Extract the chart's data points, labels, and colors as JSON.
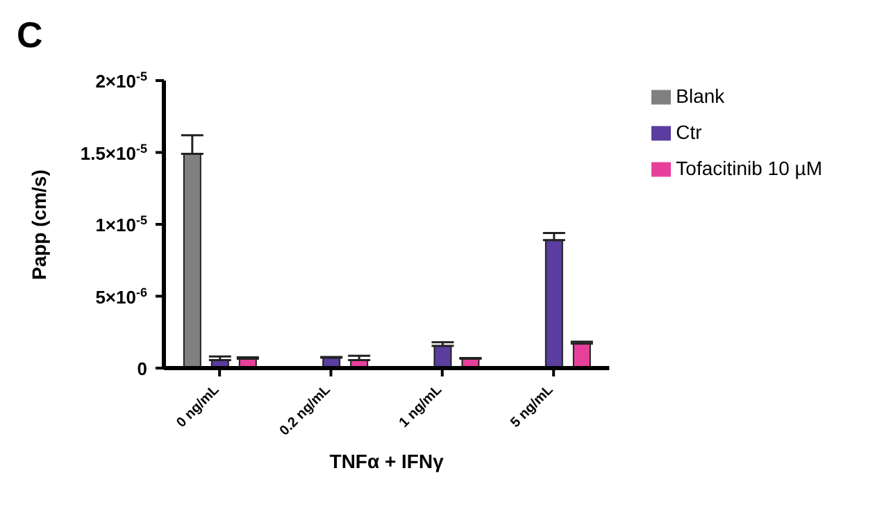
{
  "chart_data": {
    "type": "bar",
    "title": "C",
    "xlabel": "TNFα + IFNγ",
    "ylabel": "Papp (cm/s)",
    "categories": [
      "0 ng/mL",
      "0.2 ng/mL",
      "1 ng/mL",
      "5 ng/mL"
    ],
    "series": [
      {
        "name": "Blank",
        "color": "#808080",
        "values": [
          1.49e-05,
          null,
          null,
          null
        ],
        "errors": [
          1.3e-06,
          null,
          null,
          null
        ]
      },
      {
        "name": "Ctr",
        "color": "#5a3d9e",
        "values": [
          5.5e-07,
          7.2e-07,
          1.55e-06,
          8.9e-06
        ],
        "errors": [
          2.6e-07,
          5e-08,
          2.5e-07,
          5e-07
        ]
      },
      {
        "name": "Tofacitinib 10 µM",
        "color": "#e8409a",
        "values": [
          6.5e-07,
          5.6e-07,
          6.5e-07,
          1.7e-06
        ],
        "errors": [
          1e-07,
          3e-07,
          5e-08,
          1.3e-07
        ]
      }
    ],
    "ylim": [
      0,
      2e-05
    ],
    "yticks": [
      0,
      {
        "value": 5e-06,
        "label": "5×10$^{-6}$"
      },
      {
        "value": 1e-05,
        "label": "1×10$^{-5}$"
      },
      {
        "value": 1.5e-05,
        "label": "1.5×10$^{-5}$"
      },
      {
        "value": 2e-05,
        "label": "2×10$^{-5}$"
      }
    ],
    "grid": false,
    "legend": "top right"
  }
}
